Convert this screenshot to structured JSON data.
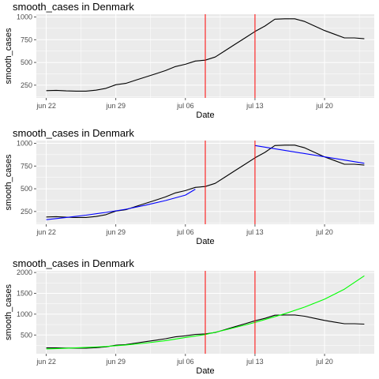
{
  "chart_data": [
    {
      "type": "line",
      "title": "smooth_cases in Denmark",
      "xlabel": "Date",
      "ylabel": "smooth_cases",
      "x_ticks": [
        "jun 22",
        "jun 29",
        "jul 06",
        "jul 13",
        "jul 20"
      ],
      "y_ticks": [
        "250",
        "500",
        "750",
        "1000"
      ],
      "xlim": [
        "2020-06-21",
        "2020-07-25"
      ],
      "ylim": [
        110,
        1030
      ],
      "grid": true,
      "vlines": [
        "2020-07-08",
        "2020-07-13"
      ],
      "vline_color": "#ff0000",
      "series": [
        {
          "color": "#000000",
          "x": [
            "2020-06-22",
            "2020-06-23",
            "2020-06-24",
            "2020-06-25",
            "2020-06-26",
            "2020-06-27",
            "2020-06-28",
            "2020-06-29",
            "2020-06-30",
            "2020-07-01",
            "2020-07-02",
            "2020-07-03",
            "2020-07-04",
            "2020-07-05",
            "2020-07-06",
            "2020-07-07",
            "2020-07-08",
            "2020-07-09",
            "2020-07-10",
            "2020-07-11",
            "2020-07-12",
            "2020-07-13",
            "2020-07-14",
            "2020-07-15",
            "2020-07-16",
            "2020-07-17",
            "2020-07-18",
            "2020-07-19",
            "2020-07-20",
            "2020-07-21",
            "2020-07-22",
            "2020-07-23",
            "2020-07-24"
          ],
          "values": [
            190,
            193,
            187,
            185,
            185,
            195,
            215,
            255,
            270,
            305,
            340,
            375,
            410,
            455,
            480,
            515,
            525,
            560,
            630,
            700,
            770,
            840,
            900,
            975,
            980,
            980,
            950,
            900,
            850,
            810,
            770,
            770,
            760
          ]
        }
      ]
    },
    {
      "type": "line",
      "title": "smooth_cases in Denmark",
      "xlabel": "Date",
      "ylabel": "smooth_cases",
      "x_ticks": [
        "jun 22",
        "jun 29",
        "jul 06",
        "jul 13",
        "jul 20"
      ],
      "y_ticks": [
        "250",
        "500",
        "750",
        "1000"
      ],
      "xlim": [
        "2020-06-21",
        "2020-07-25"
      ],
      "ylim": [
        110,
        1030
      ],
      "grid": true,
      "vlines": [
        "2020-07-08",
        "2020-07-13"
      ],
      "vline_color": "#ff0000",
      "series": [
        {
          "color": "#000000",
          "x": [
            "2020-06-22",
            "2020-06-23",
            "2020-06-24",
            "2020-06-25",
            "2020-06-26",
            "2020-06-27",
            "2020-06-28",
            "2020-06-29",
            "2020-06-30",
            "2020-07-01",
            "2020-07-02",
            "2020-07-03",
            "2020-07-04",
            "2020-07-05",
            "2020-07-06",
            "2020-07-07",
            "2020-07-08",
            "2020-07-09",
            "2020-07-10",
            "2020-07-11",
            "2020-07-12",
            "2020-07-13",
            "2020-07-14",
            "2020-07-15",
            "2020-07-16",
            "2020-07-17",
            "2020-07-18",
            "2020-07-19",
            "2020-07-20",
            "2020-07-21",
            "2020-07-22",
            "2020-07-23",
            "2020-07-24"
          ],
          "values": [
            190,
            193,
            187,
            185,
            185,
            195,
            215,
            255,
            270,
            305,
            340,
            375,
            410,
            455,
            480,
            515,
            525,
            560,
            630,
            700,
            770,
            840,
            900,
            975,
            980,
            980,
            950,
            900,
            850,
            810,
            770,
            770,
            760
          ]
        },
        {
          "color": "#0000ff",
          "x": [
            "2020-06-22",
            "2020-06-24",
            "2020-06-26",
            "2020-06-28",
            "2020-06-30",
            "2020-07-02",
            "2020-07-04",
            "2020-07-06",
            "2020-07-07"
          ],
          "values": [
            160,
            185,
            210,
            240,
            275,
            320,
            370,
            430,
            495
          ]
        },
        {
          "color": "#0000ff",
          "x": [
            "2020-07-13",
            "2020-07-24"
          ],
          "values": [
            975,
            780
          ]
        }
      ]
    },
    {
      "type": "line",
      "title": "smooth_cases in Denmark",
      "xlabel": "Date",
      "ylabel": "smooth_cases",
      "x_ticks": [
        "jun 22",
        "jun 29",
        "jul 06",
        "jul 13",
        "jul 20"
      ],
      "y_ticks": [
        "500",
        "1000",
        "1500",
        "2000"
      ],
      "xlim": [
        "2020-06-21",
        "2020-07-25"
      ],
      "ylim": [
        50,
        2040
      ],
      "grid": true,
      "vlines": [
        "2020-07-08",
        "2020-07-13"
      ],
      "vline_color": "#ff0000",
      "series": [
        {
          "color": "#000000",
          "x": [
            "2020-06-22",
            "2020-06-23",
            "2020-06-24",
            "2020-06-25",
            "2020-06-26",
            "2020-06-27",
            "2020-06-28",
            "2020-06-29",
            "2020-06-30",
            "2020-07-01",
            "2020-07-02",
            "2020-07-03",
            "2020-07-04",
            "2020-07-05",
            "2020-07-06",
            "2020-07-07",
            "2020-07-08",
            "2020-07-09",
            "2020-07-10",
            "2020-07-11",
            "2020-07-12",
            "2020-07-13",
            "2020-07-14",
            "2020-07-15",
            "2020-07-16",
            "2020-07-17",
            "2020-07-18",
            "2020-07-19",
            "2020-07-20",
            "2020-07-21",
            "2020-07-22",
            "2020-07-23",
            "2020-07-24"
          ],
          "values": [
            190,
            193,
            187,
            185,
            185,
            195,
            215,
            255,
            270,
            305,
            340,
            375,
            410,
            455,
            480,
            515,
            525,
            560,
            630,
            700,
            770,
            840,
            900,
            975,
            980,
            980,
            950,
            900,
            850,
            810,
            770,
            770,
            760
          ]
        },
        {
          "color": "#00ff00",
          "x": [
            "2020-06-22",
            "2020-06-24",
            "2020-06-26",
            "2020-06-28",
            "2020-06-30",
            "2020-07-02",
            "2020-07-04",
            "2020-07-06",
            "2020-07-08",
            "2020-07-10",
            "2020-07-12",
            "2020-07-13",
            "2020-07-14",
            "2020-07-16",
            "2020-07-18",
            "2020-07-20",
            "2020-07-22",
            "2020-07-24"
          ],
          "values": [
            165,
            180,
            200,
            225,
            260,
            305,
            365,
            440,
            510,
            620,
            740,
            800,
            870,
            1010,
            1170,
            1360,
            1600,
            1920
          ]
        }
      ]
    }
  ]
}
